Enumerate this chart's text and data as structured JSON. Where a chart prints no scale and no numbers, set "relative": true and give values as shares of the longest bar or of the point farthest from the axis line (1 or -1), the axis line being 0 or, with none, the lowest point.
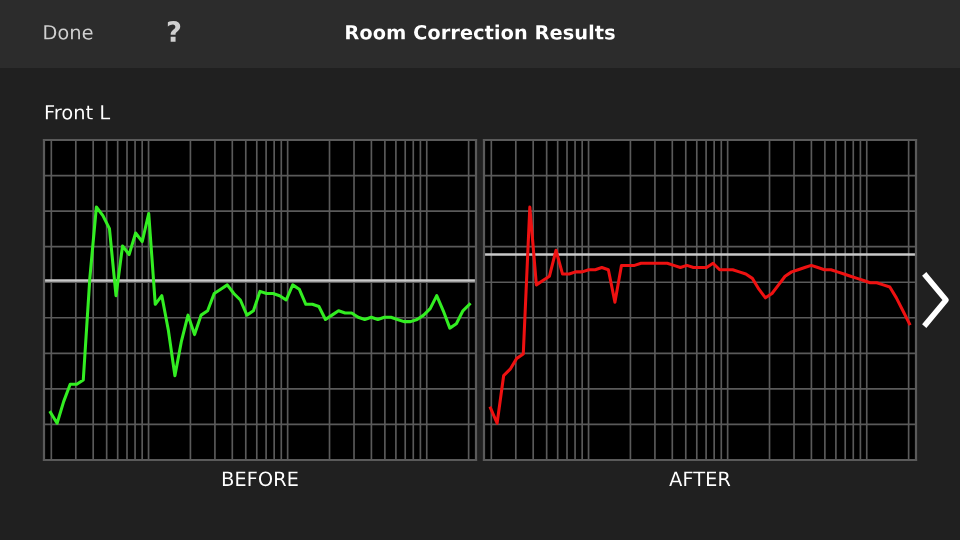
{
  "chart_data": [
    {
      "type": "line",
      "title": "Room Correction Results",
      "subtitle": "Front L",
      "xlabel": "BEFORE",
      "annotations": [
        "Done",
        "?"
      ],
      "relative": true,
      "grid": true,
      "tick_labels": false,
      "marker": "none",
      "line_style": "solid",
      "categories": [
        null,
        null,
        null,
        null,
        null,
        null,
        null,
        null,
        null,
        null,
        null,
        null,
        null,
        null,
        null,
        null,
        null,
        null,
        null,
        null,
        null,
        null,
        null,
        null,
        null,
        null,
        null,
        null,
        null,
        null,
        null,
        null,
        null,
        null,
        null,
        null,
        null,
        null,
        null,
        null,
        null,
        null,
        null,
        null,
        null,
        null,
        null,
        null,
        null,
        null,
        null,
        null,
        null,
        null,
        null,
        null,
        null,
        null,
        null,
        null,
        null,
        null,
        null,
        null,
        null
      ],
      "ref_lines": [
        {
          "axis": "y",
          "value": 0.66,
          "label": null,
          "color": "#c8c8c8"
        }
      ],
      "series": [
        {
          "color": "#33ee22",
          "values": [
            0.05,
            0,
            0.1,
            0.18,
            0.18,
            0.2,
            0.67,
            1,
            0.96,
            0.9,
            0.59,
            0.82,
            0.78,
            0.88,
            0.84,
            0.97,
            0.55,
            0.59,
            0.43,
            0.22,
            0.38,
            0.5,
            0.41,
            0.5,
            0.52,
            0.6,
            0.62,
            0.64,
            0.6,
            0.57,
            0.5,
            0.52,
            0.61,
            0.6,
            0.6,
            0.59,
            0.57,
            0.64,
            0.62,
            0.55,
            0.55,
            0.54,
            0.48,
            0.5,
            0.52,
            0.51,
            0.51,
            0.49,
            0.48,
            0.49,
            0.48,
            0.49,
            0.49,
            0.48,
            0.47,
            0.47,
            0.48,
            0.5,
            0.53,
            0.59,
            0.52,
            0.44,
            0.46,
            0.52,
            0.55
          ]
        }
      ]
    },
    {
      "type": "line",
      "xlabel": "AFTER",
      "relative": true,
      "grid": true,
      "tick_labels": false,
      "marker": "none",
      "line_style": "solid",
      "categories": [
        null,
        null,
        null,
        null,
        null,
        null,
        null,
        null,
        null,
        null,
        null,
        null,
        null,
        null,
        null,
        null,
        null,
        null,
        null,
        null,
        null,
        null,
        null,
        null,
        null,
        null,
        null,
        null,
        null,
        null,
        null,
        null,
        null,
        null,
        null,
        null,
        null,
        null,
        null,
        null,
        null,
        null,
        null,
        null,
        null,
        null,
        null,
        null,
        null,
        null,
        null,
        null,
        null,
        null,
        null,
        null,
        null,
        null,
        null,
        null,
        null,
        null,
        null,
        null,
        null
      ],
      "ref_lines": [
        {
          "axis": "y",
          "value": 0.78,
          "label": null,
          "color": "#c8c8c8"
        }
      ],
      "series": [
        {
          "color": "#ee1111",
          "values": [
            0.07,
            0,
            0.22,
            0.25,
            0.3,
            0.32,
            1,
            0.64,
            0.66,
            0.68,
            0.8,
            0.69,
            0.69,
            0.7,
            0.7,
            0.71,
            0.71,
            0.72,
            0.71,
            0.56,
            0.73,
            0.73,
            0.73,
            0.74,
            0.74,
            0.74,
            0.74,
            0.74,
            0.73,
            0.72,
            0.73,
            0.72,
            0.72,
            0.72,
            0.74,
            0.71,
            0.71,
            0.71,
            0.7,
            0.69,
            0.67,
            0.62,
            0.58,
            0.6,
            0.64,
            0.68,
            0.7,
            0.71,
            0.72,
            0.73,
            0.72,
            0.71,
            0.71,
            0.7,
            0.69,
            0.68,
            0.67,
            0.66,
            0.65,
            0.65,
            0.64,
            0.63,
            0.58,
            0.52,
            0.46
          ]
        }
      ]
    }
  ]
}
